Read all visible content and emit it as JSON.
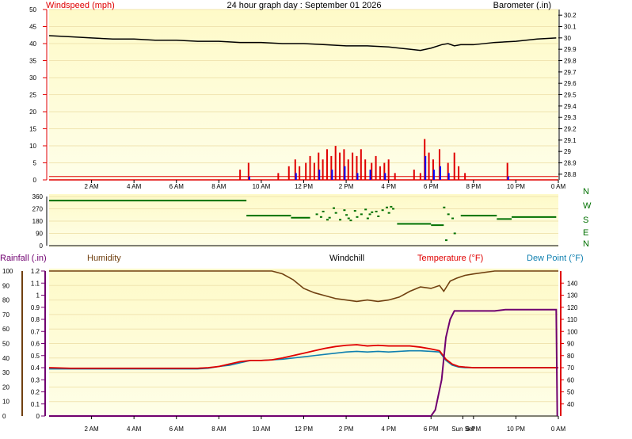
{
  "header": {
    "title": "24 hour graph day : September 01 2026",
    "windspeed_label": "Windspeed (mph)",
    "barometer_label": "Barometer (.in)"
  },
  "lower_header": {
    "rainfall_label": "Rainfall (.in)",
    "humidity_label": "Humidity",
    "windchill_label": "Windchill",
    "temperature_label": "Temperature (°F)",
    "dewpoint_label": "Dew Point (°F)"
  },
  "colors": {
    "windspeed": "#e00000",
    "gust": "#0000ff",
    "barometer": "#000000",
    "direction": "#007000",
    "humidity": "#704010",
    "temperature": "#e00000",
    "dewpoint": "#1080b0",
    "rainfall": "#700070",
    "plot_bg": "#fefac8",
    "plot_bg_light": "#fefee8"
  },
  "chart_data": [
    {
      "id": "wind",
      "type": "bar",
      "left_axis": {
        "label": "Windspeed (mph)",
        "range": [
          0,
          50
        ],
        "ticks": [
          0,
          5,
          10,
          15,
          20,
          25,
          30,
          35,
          40,
          45,
          50
        ]
      },
      "right_axis": {
        "label": "Barometer (.in)",
        "range": [
          28.75,
          30.25
        ],
        "ticks": [
          "28.8",
          "28.9",
          "29",
          "29.1",
          "29.2",
          "29.3",
          "29.4",
          "29.5",
          "29.6",
          "29.7",
          "29.8",
          "29.9",
          "30",
          "30.1",
          "30.2"
        ]
      },
      "x_ticks": [
        "2 AM",
        "4 AM",
        "6 AM",
        "8 AM",
        "10 AM",
        "12 PM",
        "2 PM",
        "4 PM",
        "6 PM",
        "8 PM",
        "10 PM",
        "0 AM"
      ],
      "x_hours": [
        2,
        4,
        6,
        8,
        10,
        12,
        14,
        16,
        18,
        20,
        22,
        24
      ],
      "xlim": [
        0,
        24
      ],
      "barometer": {
        "x": [
          0,
          1,
          2,
          3,
          4,
          5,
          6,
          7,
          8,
          9,
          10,
          11,
          12,
          13,
          14,
          15,
          16,
          17,
          17.5,
          18,
          18.5,
          18.8,
          19.1,
          19.4,
          20,
          21,
          22,
          23,
          23.9
        ],
        "y": [
          30.02,
          30.01,
          30.0,
          29.99,
          29.99,
          29.98,
          29.98,
          29.97,
          29.97,
          29.96,
          29.96,
          29.95,
          29.95,
          29.94,
          29.93,
          29.93,
          29.92,
          29.9,
          29.89,
          29.91,
          29.94,
          29.95,
          29.93,
          29.94,
          29.94,
          29.96,
          29.97,
          29.99,
          30.0
        ]
      },
      "windspeed": {
        "x": [
          9,
          9.4,
          10.8,
          11.3,
          11.6,
          11.8,
          12.1,
          12.3,
          12.5,
          12.7,
          12.9,
          13.1,
          13.3,
          13.5,
          13.7,
          13.9,
          14.1,
          14.3,
          14.5,
          14.7,
          14.9,
          15.2,
          15.4,
          15.6,
          15.8,
          16.0,
          16.3,
          17.2,
          17.5,
          17.7,
          17.9,
          18.1,
          18.4,
          18.8,
          19.1,
          19.3,
          19.6,
          21.6
        ],
        "y": [
          3,
          5,
          2,
          4,
          6,
          4,
          5,
          7,
          5,
          8,
          6,
          9,
          7,
          10,
          8,
          9,
          6,
          8,
          7,
          9,
          6,
          5,
          7,
          4,
          5,
          6,
          2,
          3,
          2,
          12,
          8,
          6,
          9,
          5,
          8,
          4,
          2,
          5
        ]
      },
      "gust": {
        "x": [
          9.4,
          11.6,
          12.7,
          13.3,
          13.9,
          14.5,
          15.1,
          15.8,
          17.7,
          18.1,
          18.4,
          18.8,
          21.6
        ],
        "y": [
          1,
          2,
          3,
          3,
          4,
          2,
          3,
          2,
          7,
          3,
          4,
          2,
          1
        ]
      }
    },
    {
      "id": "direction",
      "type": "scatter",
      "left_axis": {
        "range": [
          0,
          360
        ],
        "ticks": [
          0,
          90,
          180,
          270,
          360
        ]
      },
      "right_labels": [
        "N",
        "W",
        "S",
        "E",
        "N"
      ],
      "xlim": [
        0,
        24
      ],
      "segments": [
        {
          "x": [
            0,
            9.3
          ],
          "y": [
            330,
            330
          ]
        },
        {
          "x": [
            9.3,
            11.4
          ],
          "y": [
            220,
            220
          ]
        },
        {
          "x": [
            11.4,
            12.3
          ],
          "y": [
            205,
            205
          ]
        },
        {
          "x": [
            16.4,
            18.0
          ],
          "y": [
            160,
            160
          ]
        },
        {
          "x": [
            18.0,
            18.6
          ],
          "y": [
            150,
            150
          ]
        },
        {
          "x": [
            19.4,
            21.1
          ],
          "y": [
            220,
            220
          ]
        },
        {
          "x": [
            21.1,
            21.8
          ],
          "y": [
            195,
            195
          ]
        },
        {
          "x": [
            21.8,
            23.9
          ],
          "y": [
            210,
            210
          ]
        }
      ],
      "points": {
        "x": [
          12.6,
          12.9,
          13.2,
          13.5,
          13.7,
          14.0,
          14.2,
          14.5,
          14.7,
          15.0,
          15.2,
          15.5,
          15.7,
          16.0,
          16.2,
          13.4,
          13.9,
          14.4,
          14.9,
          15.4,
          15.9,
          12.8,
          18.6,
          18.8,
          18.7,
          19.0,
          19.1,
          13.1,
          14.1,
          15.1,
          16.1
        ],
        "y": [
          230,
          250,
          205,
          240,
          190,
          225,
          185,
          210,
          230,
          200,
          245,
          215,
          260,
          240,
          270,
          275,
          260,
          255,
          265,
          250,
          280,
          210,
          280,
          230,
          40,
          200,
          90,
          190,
          200,
          230,
          285
        ]
      }
    },
    {
      "id": "climate",
      "type": "line",
      "left_axis": {
        "label": "Humidity",
        "range": [
          0,
          100
        ],
        "ticks": [
          0,
          10,
          20,
          30,
          40,
          50,
          60,
          70,
          80,
          90,
          100
        ]
      },
      "rain_axis": {
        "label": "Rainfall (.in)",
        "range": [
          0,
          1.2
        ],
        "ticks": [
          "0",
          "0.1",
          "0.2",
          "0.3",
          "0.4",
          "0.5",
          "0.6",
          "0.7",
          "0.8",
          "0.9",
          "1",
          "1.1",
          "1.2"
        ]
      },
      "right_axis": {
        "label": "Temperature (°F)",
        "range": [
          30,
          150
        ],
        "ticks": [
          40,
          50,
          60,
          70,
          80,
          90,
          100,
          110,
          120,
          130,
          140
        ]
      },
      "x_ticks": [
        "2 AM",
        "4 AM",
        "6 AM",
        "8 AM",
        "10 AM",
        "12 PM",
        "2 PM",
        "4 PM",
        "6 PM",
        "Sun Set",
        "8 PM",
        "10 PM",
        "0 AM"
      ],
      "x_hours": [
        2,
        4,
        6,
        8,
        10,
        12,
        14,
        16,
        18,
        19.5,
        20,
        22,
        24
      ],
      "xlim": [
        0,
        24
      ],
      "humidity": {
        "x": [
          0,
          10.5,
          11,
          11.5,
          12,
          12.5,
          13,
          13.5,
          14,
          14.5,
          15,
          15.5,
          16,
          16.5,
          17,
          17.5,
          18,
          18.4,
          18.6,
          18.9,
          19.2,
          19.6,
          20,
          21,
          22,
          24
        ],
        "y": [
          100,
          100,
          98,
          94,
          88,
          85,
          83,
          81,
          80,
          79,
          80,
          79,
          80,
          82,
          86,
          89,
          88,
          90,
          86,
          93,
          95,
          97,
          98,
          100,
          100,
          100
        ]
      },
      "temperature": {
        "x": [
          0,
          1,
          2,
          3,
          4,
          5,
          6,
          7,
          7.5,
          8,
          8.5,
          9,
          9.5,
          10,
          10.5,
          11,
          11.5,
          12,
          12.5,
          13,
          13.5,
          14,
          14.5,
          15,
          15.5,
          16,
          16.5,
          17,
          17.5,
          18,
          18.4,
          18.7,
          19,
          19.3,
          19.6,
          20,
          21,
          22,
          23,
          24
        ],
        "y": [
          70,
          69.5,
          69.5,
          69.5,
          69.5,
          69.5,
          69.5,
          69.5,
          70,
          71,
          73,
          75,
          76,
          76,
          76.5,
          78,
          80,
          82,
          84,
          86,
          87.5,
          88.5,
          89,
          88,
          88.5,
          88,
          88,
          88,
          87,
          85.5,
          84,
          77,
          73,
          71,
          70.5,
          70,
          70,
          70,
          70,
          70
        ]
      },
      "dewpoint": {
        "x": [
          0,
          2,
          4,
          6,
          7,
          7.5,
          8,
          8.5,
          9,
          9.5,
          10,
          10.5,
          11,
          11.5,
          12,
          12.5,
          13,
          13.5,
          14,
          14.5,
          15,
          15.5,
          16,
          16.5,
          17,
          17.5,
          18,
          18.4,
          18.7,
          19,
          19.3,
          19.6,
          20,
          22,
          24
        ],
        "y": [
          69,
          69,
          69,
          69,
          69,
          69.5,
          71,
          72,
          74,
          76,
          76,
          76.5,
          77,
          78,
          79,
          80,
          81,
          82,
          83,
          83.5,
          83,
          83.5,
          83,
          83.5,
          84,
          84,
          83.5,
          83,
          76,
          72,
          70.5,
          70,
          70,
          70,
          70
        ]
      },
      "rainfall": {
        "x": [
          0,
          18.0,
          18.2,
          18.5,
          18.7,
          18.9,
          19.1,
          20,
          21,
          21.5,
          22,
          23,
          23.9,
          23.95
        ],
        "y": [
          0,
          0,
          0.05,
          0.3,
          0.65,
          0.8,
          0.87,
          0.87,
          0.87,
          0.88,
          0.88,
          0.88,
          0.88,
          0
        ]
      }
    }
  ]
}
